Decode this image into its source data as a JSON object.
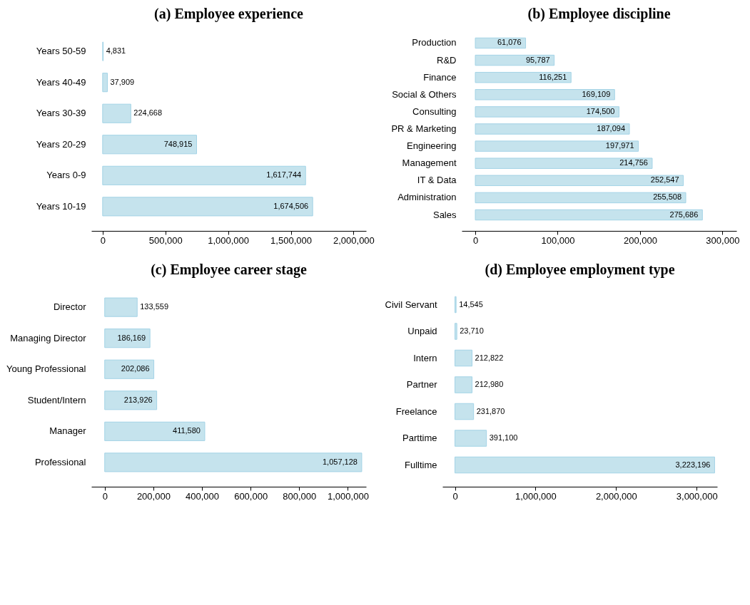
{
  "chart_data": [
    {
      "type": "bar",
      "orientation": "horizontal",
      "title": "(a) Employee experience",
      "categories": [
        "Years 50-59",
        "Years 40-49",
        "Years 30-39",
        "Years 20-29",
        "Years 0-9",
        "Years 10-19"
      ],
      "values": [
        4831,
        37909,
        224668,
        748915,
        1617744,
        1674506
      ],
      "value_labels": [
        "4,831",
        "37,909",
        "224,668",
        "748,915",
        "1,617,744",
        "1,674,506"
      ],
      "color": "#c5e3ed",
      "xlim": [
        -90000,
        2100000
      ],
      "xticks": [
        {
          "value": 0,
          "label": "0"
        },
        {
          "value": 500000,
          "label": "500,000"
        },
        {
          "value": 1000000,
          "label": "1,000,000"
        },
        {
          "value": 1500000,
          "label": "1,500,000"
        },
        {
          "value": 2000000,
          "label": "2,000,000"
        }
      ]
    },
    {
      "type": "bar",
      "orientation": "horizontal",
      "title": "(b) Employee discipline",
      "categories": [
        "Production",
        "R&D",
        "Finance",
        "Social & Others",
        "Consulting",
        "PR & Marketing",
        "Engineering",
        "Management",
        "IT & Data",
        "Administration",
        "Sales"
      ],
      "values": [
        61076,
        95787,
        116251,
        169109,
        174500,
        187094,
        197971,
        214756,
        252547,
        255508,
        275686
      ],
      "value_labels": [
        "61,076",
        "95,787",
        "116,251",
        "169,109",
        "174,500",
        "187,094",
        "197,971",
        "214,756",
        "252,547",
        "255,508",
        "275,686"
      ],
      "color": "#c5e3ed",
      "xlim": [
        -16500,
        317000
      ],
      "xticks": [
        {
          "value": 0,
          "label": "0"
        },
        {
          "value": 100000,
          "label": "100,000"
        },
        {
          "value": 200000,
          "label": "200,000"
        },
        {
          "value": 300000,
          "label": "300,000"
        }
      ]
    },
    {
      "type": "bar",
      "orientation": "horizontal",
      "title": "(c) Employee career stage",
      "categories": [
        "Director",
        "Managing Director",
        "Young Professional",
        "Student/Intern",
        "Manager",
        "Professional"
      ],
      "values": [
        133559,
        186169,
        202086,
        213926,
        411580,
        1057128
      ],
      "value_labels": [
        "133,559",
        "186,169",
        "202,086",
        "213,926",
        "411,580",
        "1,057,128"
      ],
      "color": "#c5e3ed",
      "xlim": [
        -55000,
        1075000
      ],
      "xticks": [
        {
          "value": 0,
          "label": "0"
        },
        {
          "value": 200000,
          "label": "200,000"
        },
        {
          "value": 400000,
          "label": "400,000"
        },
        {
          "value": 600000,
          "label": "600,000"
        },
        {
          "value": 800000,
          "label": "800,000"
        },
        {
          "value": 1000000,
          "label": "1,000,000"
        }
      ]
    },
    {
      "type": "bar",
      "orientation": "horizontal",
      "title": "(d) Employee employment type",
      "categories": [
        "Civil Servant",
        "Unpaid",
        "Intern",
        "Partner",
        "Freelance",
        "Parttime",
        "Fulltime"
      ],
      "values": [
        14545,
        23710,
        212822,
        212980,
        231870,
        391100,
        3223196
      ],
      "value_labels": [
        "14,545",
        "23,710",
        "212,822",
        "212,980",
        "231,870",
        "391,100",
        "3,223,196"
      ],
      "color": "#c5e3ed",
      "xlim": [
        -155000,
        3255000
      ],
      "xticks": [
        {
          "value": 0,
          "label": "0"
        },
        {
          "value": 1000000,
          "label": "1,000,000"
        },
        {
          "value": 2000000,
          "label": "2,000,000"
        },
        {
          "value": 3000000,
          "label": "3,000,000"
        }
      ]
    }
  ]
}
